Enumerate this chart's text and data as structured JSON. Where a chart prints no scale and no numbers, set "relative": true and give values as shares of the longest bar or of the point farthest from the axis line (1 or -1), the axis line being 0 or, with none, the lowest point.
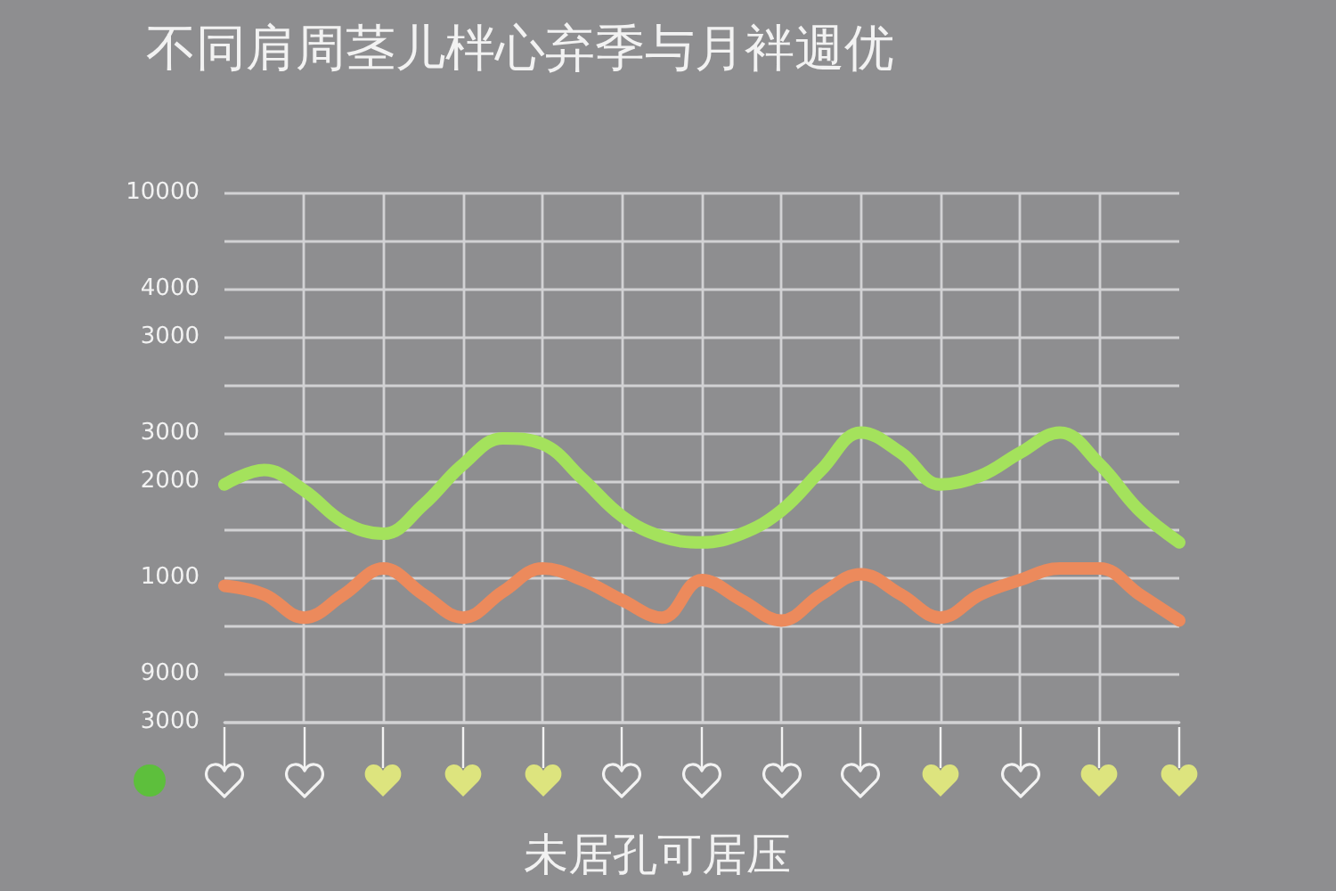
{
  "chart_data": {
    "type": "line",
    "title": "不同肩周茎儿柈心弃季与月袢週优",
    "xlabel": "未居孔可居压",
    "categories": [
      null,
      null,
      null,
      null,
      null,
      null,
      null,
      null,
      null,
      null,
      null,
      null,
      null,
      null,
      null,
      null,
      null,
      null,
      null,
      null,
      null,
      null,
      null,
      null,
      null
    ],
    "y_categories": [
      "10000",
      null,
      "4000",
      "3000",
      null,
      "3000",
      "2000",
      null,
      "1000",
      null,
      "9000",
      "3000"
    ],
    "relative": true,
    "series": [
      {
        "color": "#a4e25c",
        "values": [
          0.82,
          0.87,
          0.8,
          0.69,
          0.65,
          0.75,
          0.89,
          0.98,
          0.96,
          0.84,
          0.71,
          0.64,
          0.62,
          0.65,
          0.73,
          0.87,
          1,
          0.93,
          0.82,
          0.85,
          0.93,
          1,
          0.89,
          0.73,
          0.62
        ]
      },
      {
        "color": "#ec8a5c",
        "values": [
          0.47,
          0.44,
          0.36,
          0.44,
          0.53,
          0.44,
          0.36,
          0.45,
          0.53,
          0.49,
          0.42,
          0.36,
          0.49,
          0.42,
          0.35,
          0.44,
          0.51,
          0.44,
          0.36,
          0.44,
          0.49,
          0.53,
          0.53,
          0.44,
          0.35
        ]
      }
    ],
    "grid": true,
    "marker": "none",
    "line_style": "solid",
    "tick_labels": "y"
  }
}
